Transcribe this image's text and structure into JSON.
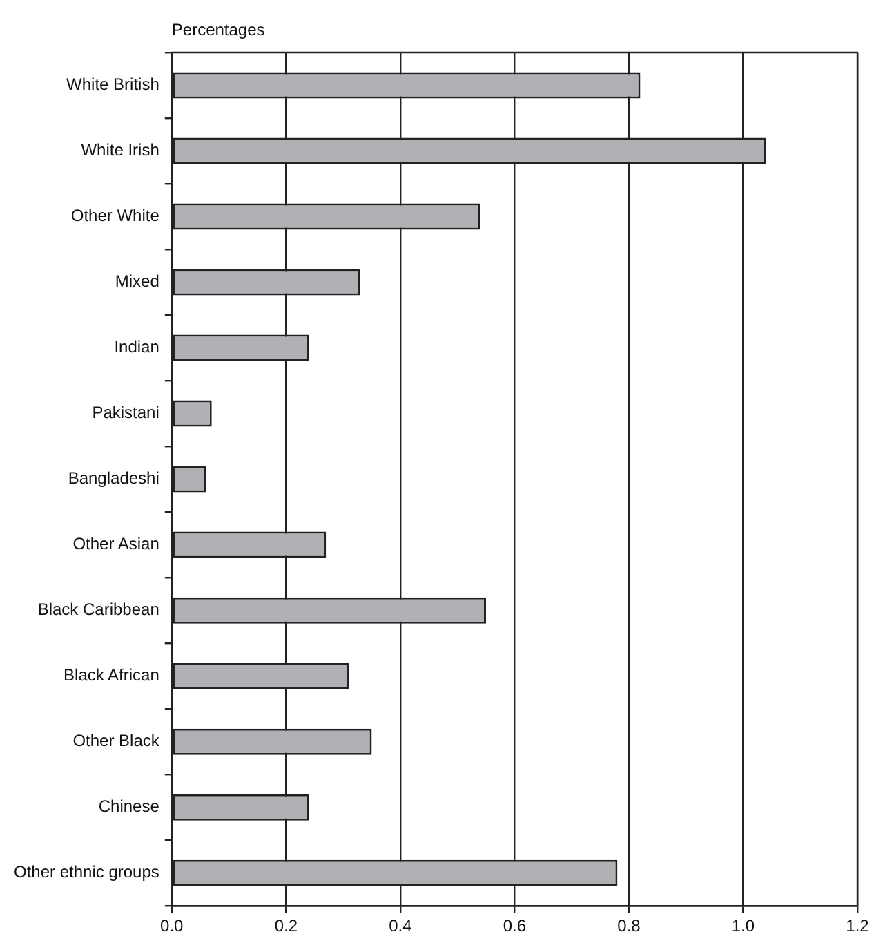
{
  "chart_data": {
    "type": "bar",
    "orientation": "horizontal",
    "xlabel": "Percentages",
    "categories": [
      "White British",
      "White Irish",
      "Other White",
      "Mixed",
      "Indian",
      "Pakistani",
      "Bangladeshi",
      "Other Asian",
      "Black Caribbean",
      "Black African",
      "Other Black",
      "Chinese",
      "Other ethnic groups"
    ],
    "values": [
      0.82,
      1.04,
      0.54,
      0.33,
      0.24,
      0.07,
      0.06,
      0.27,
      0.55,
      0.31,
      0.35,
      0.24,
      0.78
    ],
    "color": "#b0b1b5",
    "xlim": [
      0,
      1.2
    ],
    "xticks": [
      {
        "value": 0,
        "label": "0.0"
      },
      0.2,
      0.4,
      0.6,
      0.8,
      {
        "value": 1,
        "label": "1.0"
      },
      1.2
    ],
    "grid": "x",
    "legend": false
  }
}
